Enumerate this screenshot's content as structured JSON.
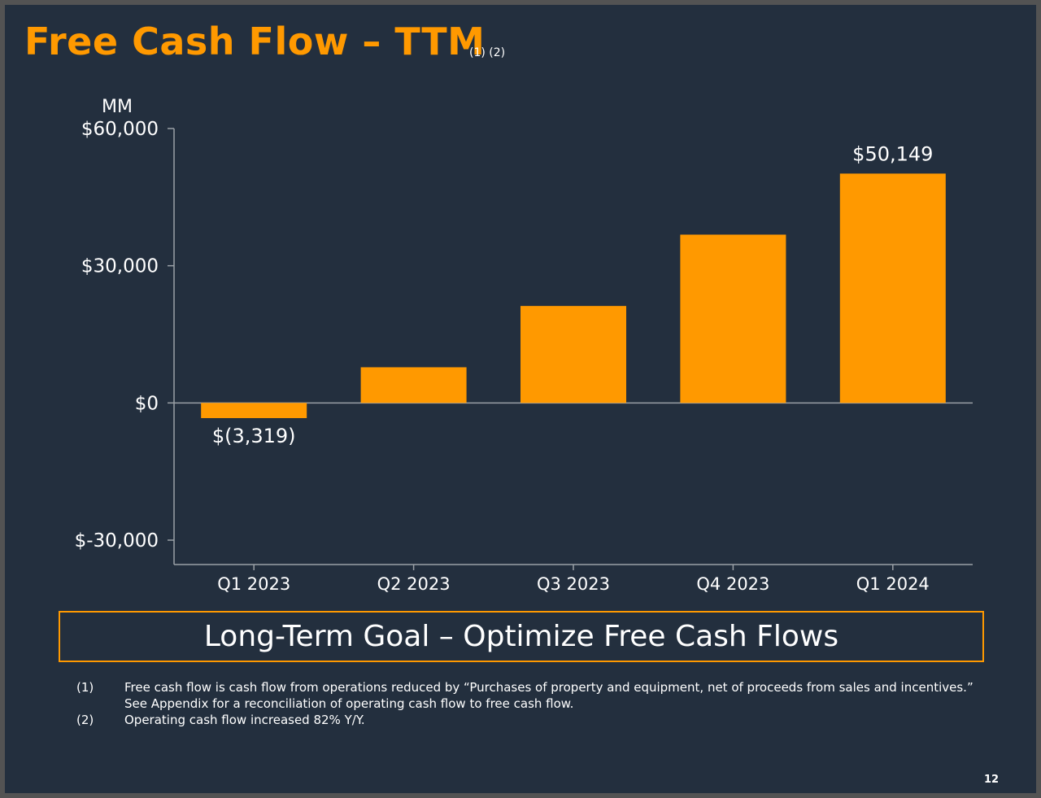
{
  "slide": {
    "title": "Free Cash Flow – TTM",
    "title_notes": "(1) (2)",
    "goal": "Long-Term Goal – Optimize Free Cash Flows",
    "footnotes": [
      {
        "num": "(1)",
        "lines": [
          "Free cash flow is cash flow from operations reduced by “Purchases of property and equipment, net of proceeds from sales and incentives.”",
          "See Appendix for a reconciliation of operating cash flow to free cash flow."
        ]
      },
      {
        "num": "(2)",
        "lines": [
          "Operating cash flow increased 82% Y/Y."
        ]
      }
    ],
    "page_number": "12"
  },
  "colors": {
    "background": "#232f3e",
    "accent": "#ff9900",
    "text": "#ffffff",
    "axis": "#9aa0a6"
  },
  "chart_data": {
    "type": "bar",
    "title": "Free Cash Flow – TTM",
    "ylabel": "MM",
    "categories": [
      "Q1 2023",
      "Q2 2023",
      "Q3 2023",
      "Q4 2023",
      "Q1 2024"
    ],
    "values": [
      -3319,
      7800,
      21200,
      36800,
      50149
    ],
    "data_labels": [
      "$(3,319)",
      "",
      "",
      "",
      "$50,149"
    ],
    "ylim": [
      -30000,
      60000
    ],
    "yticks": [
      60000,
      30000,
      0,
      -30000
    ],
    "ytick_labels": [
      "$60,000",
      "$30,000",
      "$0",
      "$-30,000"
    ],
    "bar_color": "#ff9900",
    "grid": false,
    "legend": "none"
  }
}
